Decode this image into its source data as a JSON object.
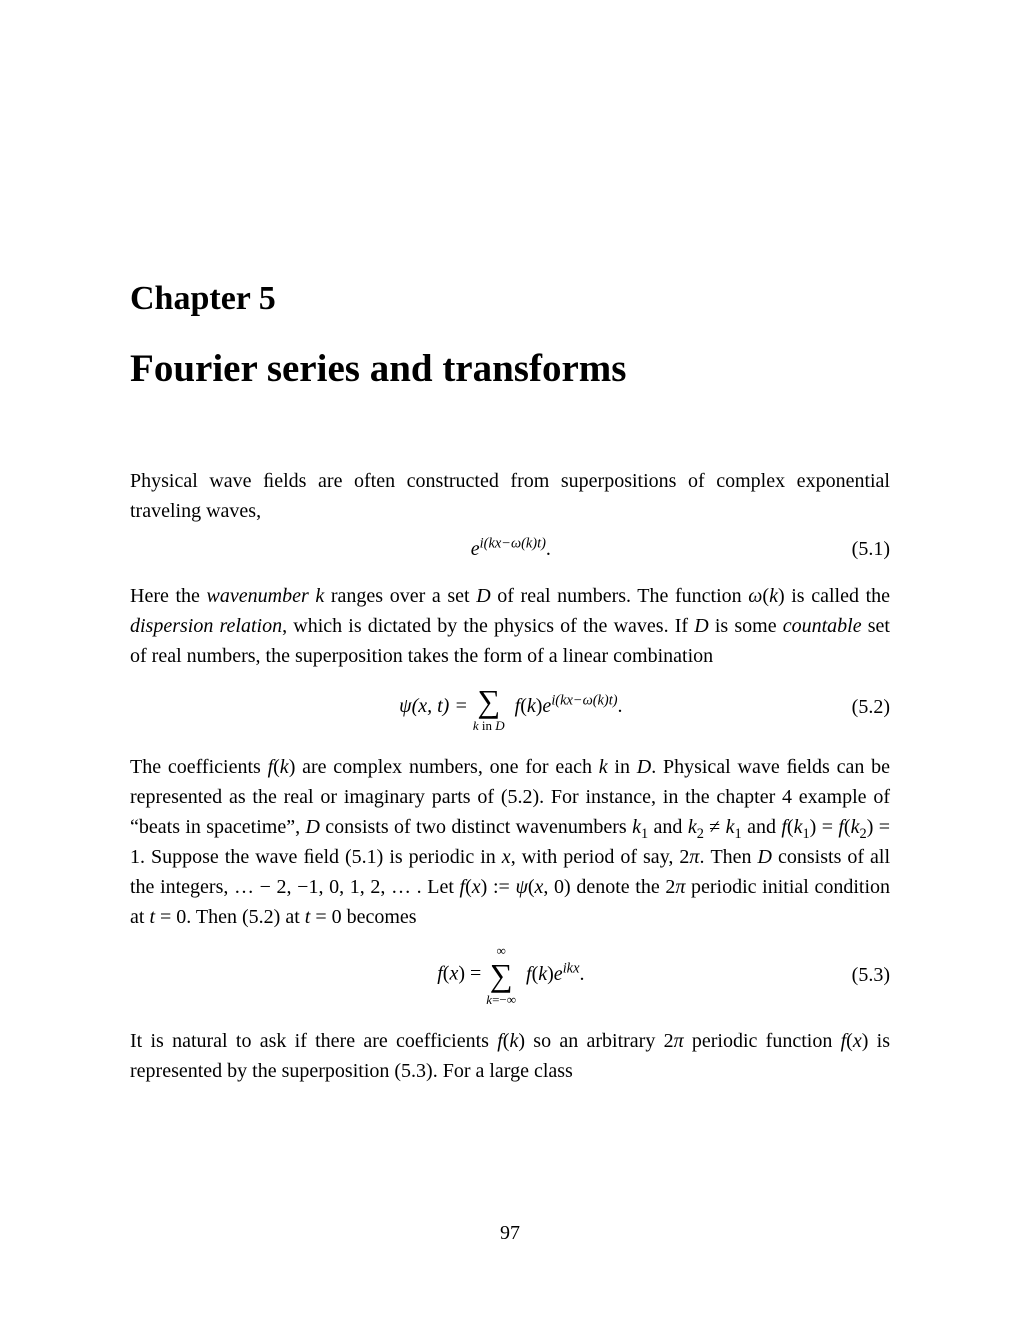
{
  "chapter_label": "Chapter 5",
  "chapter_title": "Fourier series and transforms",
  "para1": "Physical wave ﬁelds are often constructed from superpositions of complex exponential traveling waves,",
  "eq1": {
    "content_html": "<span class=\"italic\">e</span><span class=\"sup italic\">i(kx−ω(k)t)</span>.",
    "label": "(5.1)"
  },
  "para2_html": "Here the <span class=\"italic\">wavenumber</span> <span class=\"italic\">k</span> ranges over a set <span class=\"italic\">D</span> of real numbers. The function <span class=\"italic\">ω</span>(<span class=\"italic\">k</span>) is called the <span class=\"italic\">dispersion relation</span>, which is dictated by the physics of the waves. If <span class=\"italic\">D</span> is some <span class=\"italic\">countable</span> set of real numbers, the superposition takes the form of a linear combination",
  "eq2": {
    "lhs": "ψ(x, t) = ",
    "sum_top": "",
    "sum_bottom_html": "<span class=\"italic\">k</span> in <span class=\"italic\">D</span>",
    "rhs_html": "&nbsp;<span class=\"italic\">f</span>(<span class=\"italic\">k</span>)<span class=\"italic\">e</span><span class=\"sup italic\">i(kx−ω(k)t)</span>.",
    "label": "(5.2)"
  },
  "para3_html": "The coefficients <span class=\"italic\">f</span>(<span class=\"italic\">k</span>) are complex numbers, one for each <span class=\"italic\">k</span> in <span class=\"italic\">D</span>. Physical wave ﬁelds can be represented as the real or imaginary parts of (5.2). For instance, in the chapter 4 example of &ldquo;beats in spacetime&rdquo;, <span class=\"italic\">D</span> consists of two distinct wavenumbers <span class=\"italic\">k</span><span class=\"sub\">1</span> and <span class=\"italic\">k</span><span class=\"sub\">2</span> ≠ <span class=\"italic\">k</span><span class=\"sub\">1</span> and <span class=\"italic\">f</span>(<span class=\"italic\">k</span><span class=\"sub\">1</span>) = <span class=\"italic\">f</span>(<span class=\"italic\">k</span><span class=\"sub\">2</span>) = 1. Suppose the wave ﬁeld (5.1) is periodic in <span class=\"italic\">x</span>, with period of say, 2<span class=\"italic\">π</span>. Then <span class=\"italic\">D</span> consists of all the integers, &hellip; − 2, −1, 0, 1, 2, &hellip; . Let <span class=\"italic\">f</span>(<span class=\"italic\">x</span>) := <span class=\"italic\">ψ</span>(<span class=\"italic\">x</span>, 0) denote the 2<span class=\"italic\">π</span> periodic initial condition at <span class=\"italic\">t</span> = 0. Then (5.2) at <span class=\"italic\">t</span> = 0 becomes",
  "eq3": {
    "lhs_html": "<span class=\"italic\">f</span>(<span class=\"italic\">x</span>) = ",
    "sum_top": "∞",
    "sum_bottom_html": "<span class=\"italic\">k</span>=−∞",
    "rhs_html": "&nbsp;<span class=\"italic\">f</span>(<span class=\"italic\">k</span>)<span class=\"italic\">e</span><span class=\"sup italic\">ikx</span>.",
    "label": "(5.3)"
  },
  "para4_html": "It is natural to ask if there are coefficients <span class=\"italic\">f</span>(<span class=\"italic\">k</span>) so an arbitrary 2<span class=\"italic\">π</span> periodic function <span class=\"italic\">f</span>(<span class=\"italic\">x</span>) is represented by the superposition (5.3). For a large class",
  "page_number": "97"
}
